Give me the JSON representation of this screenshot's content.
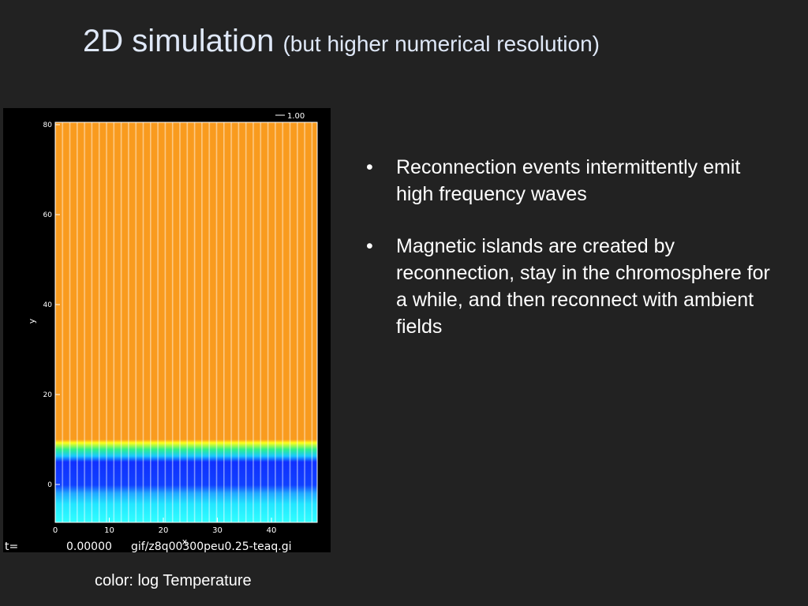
{
  "title": {
    "main": "2D simulation",
    "sub": "(but higher numerical resolution)"
  },
  "bullets": [
    "Reconnection events intermittently emit high frequency waves",
    "Magnetic islands are created by reconnection, stay in the chromosphere for a while, and then reconnect with ambient fields"
  ],
  "figure": {
    "scale_label": "1.00",
    "y_label": "y",
    "x_label": "x",
    "yticks": [
      0,
      20,
      40,
      60,
      80
    ],
    "xticks": [
      0,
      10,
      20,
      30,
      40
    ],
    "time_label": "t=",
    "time_value": "0.00000",
    "file_label": "gif/z8q00300peu0.25-teaq.gi"
  },
  "caption": "color: log Temperature"
}
